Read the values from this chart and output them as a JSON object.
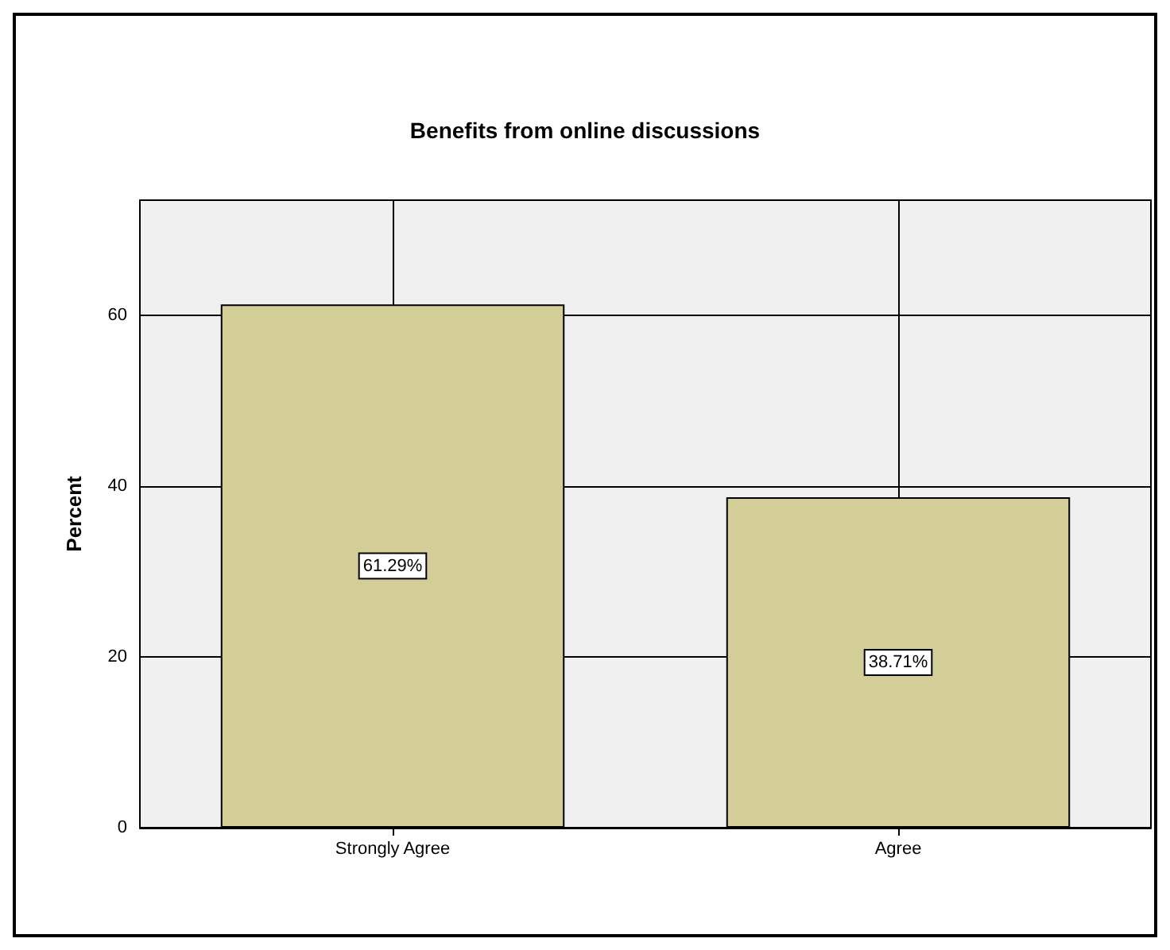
{
  "chart_data": {
    "type": "bar",
    "title": "Benefits from online discussions",
    "ylabel": "Percent",
    "categories": [
      "Strongly Agree",
      "Agree"
    ],
    "values": [
      61.29,
      38.71
    ],
    "value_labels": [
      "61.29%",
      "38.71%"
    ],
    "color": "#d3ce97",
    "ylim": [
      0,
      73.5
    ],
    "yticks": [
      0,
      20,
      40,
      60
    ],
    "grid": true
  }
}
